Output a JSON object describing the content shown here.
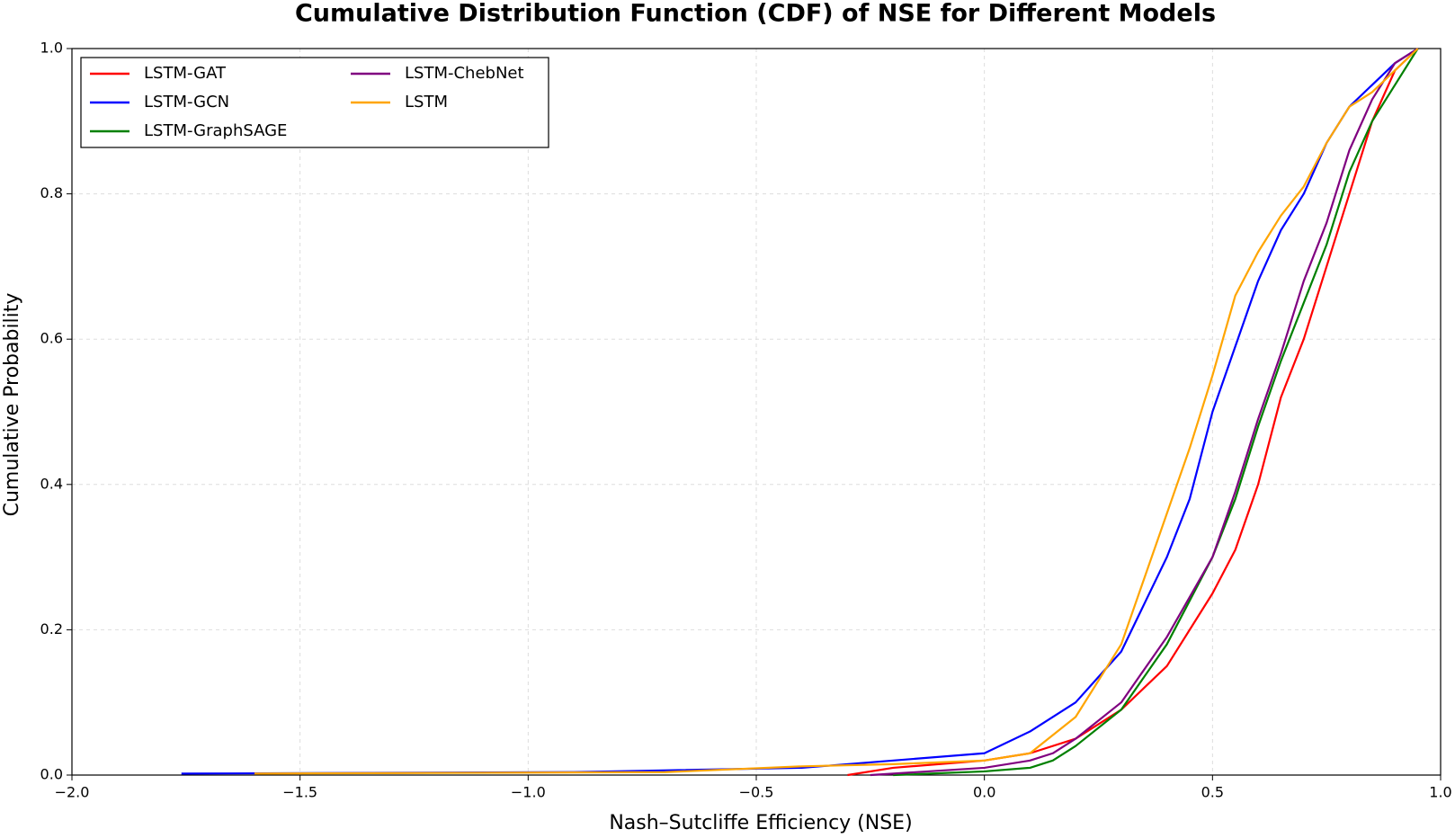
{
  "chart_data": {
    "type": "line",
    "title": "Cumulative Distribution Function (CDF) of NSE for Different Models",
    "x_label": "Nash–Sutcliffe Efficiency (NSE)",
    "y_label": "Cumulative Probability",
    "xlim": [
      -2.0,
      1.0
    ],
    "ylim": [
      0.0,
      1.0
    ],
    "xticks": [
      {
        "value": -2.0,
        "label": "−2.0"
      },
      {
        "value": -1.5,
        "label": "−1.5"
      },
      {
        "value": -1.0,
        "label": "−1.0"
      },
      {
        "value": -0.5,
        "label": "−0.5"
      },
      {
        "value": 0.0,
        "label": "0.0"
      },
      {
        "value": 0.5,
        "label": "0.5"
      },
      {
        "value": 1.0,
        "label": "1.0"
      }
    ],
    "yticks": [
      {
        "value": 0.0,
        "label": "0.0"
      },
      {
        "value": 0.2,
        "label": "0.2"
      },
      {
        "value": 0.4,
        "label": "0.4"
      },
      {
        "value": 0.6,
        "label": "0.6"
      },
      {
        "value": 0.8,
        "label": "0.8"
      },
      {
        "value": 1.0,
        "label": "1.0"
      }
    ],
    "grid": true,
    "legend": "upper left",
    "series": [
      {
        "name": "LSTM-GAT",
        "color": "#ff0000",
        "x": [
          -0.3,
          -0.2,
          0.0,
          0.1,
          0.2,
          0.3,
          0.4,
          0.5,
          0.55,
          0.6,
          0.65,
          0.7,
          0.75,
          0.8,
          0.85,
          0.9,
          0.95
        ],
        "values": [
          0.0,
          0.01,
          0.02,
          0.03,
          0.05,
          0.09,
          0.15,
          0.25,
          0.31,
          0.4,
          0.52,
          0.6,
          0.7,
          0.8,
          0.9,
          0.97,
          1.0
        ]
      },
      {
        "name": "LSTM-GCN",
        "color": "#0000ff",
        "x": [
          -1.76,
          -0.9,
          -0.4,
          0.0,
          0.1,
          0.2,
          0.3,
          0.4,
          0.45,
          0.5,
          0.55,
          0.6,
          0.65,
          0.7,
          0.75,
          0.8,
          0.85,
          0.9,
          0.95
        ],
        "values": [
          0.002,
          0.004,
          0.01,
          0.03,
          0.06,
          0.1,
          0.17,
          0.3,
          0.38,
          0.5,
          0.59,
          0.68,
          0.75,
          0.8,
          0.87,
          0.92,
          0.95,
          0.98,
          1.0
        ]
      },
      {
        "name": "LSTM-GraphSAGE",
        "color": "#008000",
        "x": [
          -0.2,
          0.0,
          0.1,
          0.15,
          0.2,
          0.3,
          0.4,
          0.5,
          0.55,
          0.6,
          0.65,
          0.7,
          0.75,
          0.8,
          0.85,
          0.9,
          0.95
        ],
        "values": [
          0.0,
          0.005,
          0.01,
          0.02,
          0.04,
          0.09,
          0.18,
          0.3,
          0.38,
          0.48,
          0.57,
          0.65,
          0.73,
          0.83,
          0.9,
          0.95,
          1.0
        ]
      },
      {
        "name": "LSTM-ChebNet",
        "color": "#800080",
        "x": [
          -0.25,
          0.0,
          0.1,
          0.15,
          0.2,
          0.3,
          0.4,
          0.5,
          0.55,
          0.6,
          0.65,
          0.7,
          0.75,
          0.8,
          0.85,
          0.9,
          0.95
        ],
        "values": [
          0.0,
          0.01,
          0.02,
          0.03,
          0.05,
          0.1,
          0.19,
          0.3,
          0.39,
          0.49,
          0.58,
          0.68,
          0.76,
          0.86,
          0.93,
          0.98,
          1.0
        ]
      },
      {
        "name": "LSTM",
        "color": "#ffa500",
        "x": [
          -1.6,
          -0.7,
          -0.4,
          -0.2,
          0.0,
          0.1,
          0.2,
          0.3,
          0.35,
          0.4,
          0.45,
          0.5,
          0.55,
          0.6,
          0.65,
          0.7,
          0.75,
          0.8,
          0.85,
          0.9,
          0.95
        ],
        "values": [
          0.002,
          0.004,
          0.012,
          0.015,
          0.02,
          0.03,
          0.08,
          0.18,
          0.27,
          0.36,
          0.45,
          0.55,
          0.66,
          0.72,
          0.77,
          0.81,
          0.87,
          0.92,
          0.94,
          0.97,
          1.0
        ]
      }
    ]
  }
}
